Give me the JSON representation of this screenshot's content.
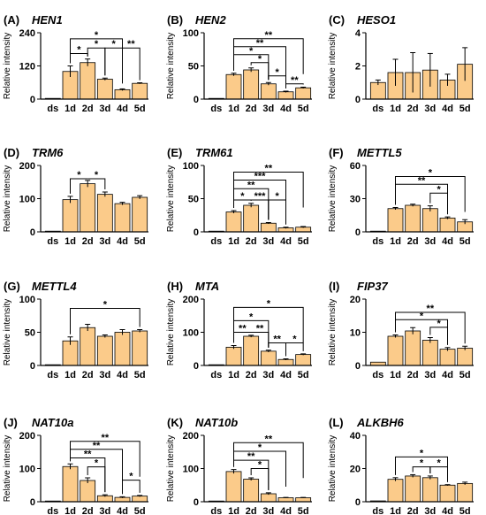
{
  "chart_data": [
    {
      "panel": "(A)",
      "title": "HEN1",
      "type": "bar",
      "ylabel": "Relative intensity",
      "categories": [
        "ds",
        "1d",
        "2d",
        "3d",
        "4d",
        "5d"
      ],
      "values": [
        1,
        100,
        132,
        72,
        34,
        57
      ],
      "errors": [
        0,
        20,
        13,
        4,
        3,
        2
      ],
      "yticks": [
        0,
        120,
        240
      ],
      "ylim": [
        0,
        240
      ],
      "brackets": [
        {
          "from": 1,
          "to": 2,
          "level": 165,
          "label": "*"
        },
        {
          "from": 2,
          "to": 3,
          "level": 185,
          "label": "*"
        },
        {
          "from": 3,
          "to": 4,
          "level": 185,
          "label": "*"
        },
        {
          "from": 4,
          "to": 5,
          "level": 185,
          "label": "**"
        },
        {
          "from": 1,
          "to": 4,
          "level": 218,
          "label": "*"
        }
      ]
    },
    {
      "panel": "(B)",
      "title": "HEN2",
      "type": "bar",
      "ylabel": "Relative intensity",
      "categories": [
        "ds",
        "1d",
        "2d",
        "3d",
        "4d",
        "5d"
      ],
      "values": [
        0.5,
        37,
        44,
        23,
        11,
        17
      ],
      "errors": [
        0,
        2,
        3,
        2,
        1,
        1
      ],
      "yticks": [
        0,
        50,
        100
      ],
      "ylim": [
        0,
        100
      ],
      "brackets": [
        {
          "from": 1,
          "to": 5,
          "level": 91,
          "label": "**"
        },
        {
          "from": 1,
          "to": 4,
          "level": 79,
          "label": "**"
        },
        {
          "from": 1,
          "to": 3,
          "level": 67,
          "label": "*"
        },
        {
          "from": 2,
          "to": 3,
          "level": 55,
          "label": "*"
        },
        {
          "from": 3,
          "to": 4,
          "level": 35,
          "label": "*"
        },
        {
          "from": 4,
          "to": 5,
          "level": 23,
          "label": "**"
        }
      ]
    },
    {
      "panel": "(C)",
      "title": "HESO1",
      "type": "bar",
      "ylabel": "Relative intensity",
      "categories": [
        "ds",
        "1d",
        "2d",
        "3d",
        "4d",
        "5d"
      ],
      "values": [
        1.0,
        1.6,
        1.6,
        1.75,
        1.15,
        2.1
      ],
      "errors": [
        0.15,
        0.8,
        1.2,
        1.0,
        0.35,
        1.0
      ],
      "yticks": [
        0,
        2,
        4
      ],
      "ylim": [
        0,
        4
      ],
      "brackets": []
    },
    {
      "panel": "(D)",
      "title": "TRM6",
      "type": "bar",
      "ylabel": "Relative intensity",
      "categories": [
        "ds",
        "1d",
        "2d",
        "3d",
        "4d",
        "5d"
      ],
      "values": [
        1,
        97,
        145,
        113,
        85,
        104
      ],
      "errors": [
        0,
        10,
        10,
        7,
        4,
        5
      ],
      "yticks": [
        0,
        100,
        200
      ],
      "ylim": [
        0,
        200
      ],
      "brackets": [
        {
          "from": 1,
          "to": 2,
          "level": 160,
          "label": "*"
        },
        {
          "from": 2,
          "to": 3,
          "level": 160,
          "label": "*"
        }
      ]
    },
    {
      "panel": "(E)",
      "title": "TRM61",
      "type": "bar",
      "ylabel": "Relative intensity",
      "categories": [
        "ds",
        "1d",
        "2d",
        "3d",
        "4d",
        "5d"
      ],
      "values": [
        0.5,
        30,
        40,
        13,
        6,
        7
      ],
      "errors": [
        0,
        2,
        3,
        1,
        1,
        1
      ],
      "yticks": [
        0,
        50,
        100
      ],
      "ylim": [
        0,
        100
      ],
      "brackets": [
        {
          "from": 1,
          "to": 5,
          "level": 90,
          "label": "**"
        },
        {
          "from": 1,
          "to": 4,
          "level": 78,
          "label": "***"
        },
        {
          "from": 1,
          "to": 3,
          "level": 65,
          "label": "**"
        },
        {
          "from": 1,
          "to": 2,
          "level": 48,
          "label": "*"
        },
        {
          "from": 2,
          "to": 3,
          "level": 48,
          "label": "***"
        },
        {
          "from": 3,
          "to": 4,
          "level": 48,
          "label": "*"
        }
      ]
    },
    {
      "panel": "(F)",
      "title": "METTL5",
      "type": "bar",
      "ylabel": "Relative intensity",
      "categories": [
        "ds",
        "1d",
        "2d",
        "3d",
        "4d",
        "5d"
      ],
      "values": [
        0.5,
        21,
        24,
        21,
        12.5,
        9
      ],
      "errors": [
        0,
        1,
        1,
        2.5,
        1,
        2
      ],
      "yticks": [
        0,
        30,
        60
      ],
      "ylim": [
        0,
        60
      ],
      "brackets": [
        {
          "from": 1,
          "to": 5,
          "level": 50,
          "label": "*"
        },
        {
          "from": 1,
          "to": 4,
          "level": 43,
          "label": "**"
        },
        {
          "from": 3,
          "to": 4,
          "level": 35,
          "label": "*"
        }
      ]
    },
    {
      "panel": "(G)",
      "title": "METTL4",
      "type": "bar",
      "ylabel": "Relative intensity",
      "categories": [
        "ds",
        "1d",
        "2d",
        "3d",
        "4d",
        "5d"
      ],
      "values": [
        0.5,
        37,
        57,
        44,
        50,
        52
      ],
      "errors": [
        0,
        6,
        5,
        2,
        4,
        2
      ],
      "yticks": [
        0,
        50,
        100
      ],
      "ylim": [
        0,
        100
      ],
      "brackets": [
        {
          "from": 1,
          "to": 5,
          "level": 86,
          "label": "*"
        }
      ]
    },
    {
      "panel": "(H)",
      "title": "MTA",
      "type": "bar",
      "ylabel": "Relative intensity",
      "categories": [
        "ds",
        "1d",
        "2d",
        "3d",
        "4d",
        "5d"
      ],
      "values": [
        1,
        55,
        88,
        43,
        18,
        33
      ],
      "errors": [
        0,
        5,
        3,
        3,
        2,
        2
      ],
      "yticks": [
        0,
        100,
        200
      ],
      "ylim": [
        0,
        200
      ],
      "brackets": [
        {
          "from": 1,
          "to": 5,
          "level": 175,
          "label": "*"
        },
        {
          "from": 1,
          "to": 3,
          "level": 135,
          "label": "*"
        },
        {
          "from": 1,
          "to": 2,
          "level": 100,
          "label": "**"
        },
        {
          "from": 2,
          "to": 3,
          "level": 100,
          "label": "**"
        },
        {
          "from": 3,
          "to": 4,
          "level": 68,
          "label": "**"
        },
        {
          "from": 4,
          "to": 5,
          "level": 68,
          "label": "*"
        }
      ]
    },
    {
      "panel": "(I)",
      "title": "FIP37",
      "type": "bar",
      "ylabel": "Relative intensity",
      "categories": [
        "ds",
        "1d",
        "2d",
        "3d",
        "4d",
        "5d"
      ],
      "values": [
        1,
        8.8,
        10.4,
        7.6,
        4.9,
        5.2
      ],
      "errors": [
        0,
        0.4,
        1.0,
        0.8,
        0.5,
        0.6
      ],
      "yticks": [
        0,
        10,
        20
      ],
      "ylim": [
        0,
        20
      ],
      "brackets": [
        {
          "from": 1,
          "to": 5,
          "level": 16,
          "label": "**"
        },
        {
          "from": 1,
          "to": 4,
          "level": 13.8,
          "label": "*"
        },
        {
          "from": 3,
          "to": 4,
          "level": 11.5,
          "label": "*"
        }
      ]
    },
    {
      "panel": "(J)",
      "title": "NAT10a",
      "type": "bar",
      "ylabel": "Relative intensity",
      "categories": [
        "ds",
        "1d",
        "2d",
        "3d",
        "4d",
        "5d"
      ],
      "values": [
        1,
        106,
        64,
        18,
        13,
        17
      ],
      "errors": [
        0,
        8,
        8,
        3,
        2,
        2
      ],
      "yticks": [
        0,
        100,
        200
      ],
      "ylim": [
        0,
        200
      ],
      "brackets": [
        {
          "from": 1,
          "to": 5,
          "level": 182,
          "label": "**"
        },
        {
          "from": 1,
          "to": 4,
          "level": 158,
          "label": "**"
        },
        {
          "from": 1,
          "to": 3,
          "level": 132,
          "label": "**"
        },
        {
          "from": 2,
          "to": 3,
          "level": 105,
          "label": "*"
        },
        {
          "from": 4,
          "to": 5,
          "level": 65,
          "label": "*"
        }
      ]
    },
    {
      "panel": "(K)",
      "title": "NAT10b",
      "type": "bar",
      "ylabel": "Relative intensity",
      "categories": [
        "ds",
        "1d",
        "2d",
        "3d",
        "4d",
        "5d"
      ],
      "values": [
        1,
        91,
        68,
        24,
        12,
        12
      ],
      "errors": [
        0,
        6,
        4,
        3,
        1,
        1
      ],
      "yticks": [
        0,
        100,
        200
      ],
      "ylim": [
        0,
        200
      ],
      "brackets": [
        {
          "from": 1,
          "to": 5,
          "level": 178,
          "label": "**"
        },
        {
          "from": 1,
          "to": 4,
          "level": 152,
          "label": "*"
        },
        {
          "from": 1,
          "to": 3,
          "level": 125,
          "label": "**"
        },
        {
          "from": 2,
          "to": 3,
          "level": 100,
          "label": "*"
        }
      ]
    },
    {
      "panel": "(L)",
      "title": "ALKBH6",
      "type": "bar",
      "ylabel": "Relative intensity",
      "categories": [
        "ds",
        "1d",
        "2d",
        "3d",
        "4d",
        "5d"
      ],
      "values": [
        0.5,
        13.5,
        15.5,
        14.5,
        10,
        11
      ],
      "errors": [
        0,
        1,
        0.8,
        1,
        0.3,
        0.8
      ],
      "yticks": [
        0,
        20,
        40
      ],
      "ylim": [
        0,
        40
      ],
      "brackets": [
        {
          "from": 1,
          "to": 4,
          "level": 27,
          "label": "*"
        },
        {
          "from": 2,
          "to": 3,
          "level": 21,
          "label": "*"
        },
        {
          "from": 3,
          "to": 4,
          "level": 21,
          "label": "*"
        }
      ]
    }
  ],
  "colors": {
    "bar_fill": "#fbcb8a",
    "bar_stroke": "#000000",
    "axis": "#000000"
  }
}
